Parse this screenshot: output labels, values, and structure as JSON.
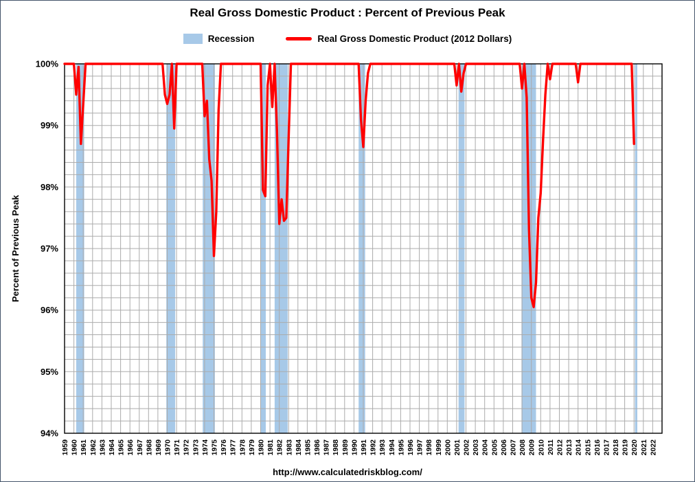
{
  "title": "Real Gross Domestic Product : Percent of Previous Peak",
  "footer_url": "http://www.calculatedriskblog.com/",
  "legend": {
    "recession": {
      "label": "Recession",
      "color": "#A7C9E8"
    },
    "gdp": {
      "label": "Real Gross Domestic Product (2012 Dollars)",
      "color": "#FF0000"
    }
  },
  "chart_data": {
    "type": "line",
    "title": "Real Gross Domestic Product : Percent of Previous Peak",
    "xlabel": "",
    "ylabel": "Percent of Previous Peak",
    "ylim": [
      94,
      100
    ],
    "ytick_step": 1,
    "ytick_labels": [
      "94%",
      "95%",
      "96%",
      "97%",
      "98%",
      "99%",
      "100%"
    ],
    "minor_grid_step": 0.2,
    "grid": true,
    "legend_position": "top",
    "x_start_year": 1959,
    "x_axis_span_years": 64,
    "x_tick_years": [
      1959,
      1960,
      1961,
      1962,
      1963,
      1964,
      1965,
      1966,
      1967,
      1968,
      1969,
      1970,
      1971,
      1972,
      1973,
      1974,
      1975,
      1976,
      1977,
      1978,
      1979,
      1980,
      1981,
      1982,
      1983,
      1984,
      1985,
      1986,
      1987,
      1988,
      1989,
      1990,
      1991,
      1992,
      1993,
      1994,
      1995,
      1996,
      1997,
      1998,
      1999,
      2000,
      2001,
      2002,
      2003,
      2004,
      2005,
      2006,
      2007,
      2008,
      2009,
      2010,
      2011,
      2012,
      2013,
      2014,
      2015,
      2016,
      2017,
      2018,
      2019,
      2020,
      2021,
      2022
    ],
    "recessions": [
      [
        1960.25,
        1961.1
      ],
      [
        1969.9,
        1970.85
      ],
      [
        1973.8,
        1975.1
      ],
      [
        1980.0,
        1980.55
      ],
      [
        1981.5,
        1982.9
      ],
      [
        1990.5,
        1991.2
      ],
      [
        2001.2,
        2001.85
      ],
      [
        2007.95,
        2009.5
      ],
      [
        2020.1,
        2020.35
      ]
    ],
    "series": [
      {
        "name": "Real Gross Domestic Product (2012 Dollars)",
        "color": "#FF0000",
        "start": 1959.0,
        "step": 0.25,
        "unit": "percent of previous peak",
        "values": [
          100,
          100,
          100,
          100,
          100,
          99.5,
          99.95,
          98.7,
          99.35,
          100,
          100,
          100,
          100,
          100,
          100,
          100,
          100,
          100,
          100,
          100,
          100,
          100,
          100,
          100,
          100,
          100,
          100,
          100,
          100,
          100,
          100,
          100,
          100,
          100,
          100,
          100,
          100,
          100,
          100,
          100,
          100,
          100,
          100,
          99.5,
          99.35,
          99.5,
          100,
          98.95,
          100,
          100,
          100,
          100,
          100,
          100,
          100,
          100,
          100,
          100,
          100,
          100,
          99.15,
          99.4,
          98.45,
          98.1,
          96.88,
          97.6,
          99.25,
          100,
          100,
          100,
          100,
          100,
          100,
          100,
          100,
          100,
          100,
          100,
          100,
          100,
          100,
          100,
          100,
          100,
          100,
          97.95,
          97.85,
          99.65,
          100,
          99.3,
          100,
          98.9,
          97.4,
          97.8,
          97.45,
          97.5,
          98.8,
          100,
          100,
          100,
          100,
          100,
          100,
          100,
          100,
          100,
          100,
          100,
          100,
          100,
          100,
          100,
          100,
          100,
          100,
          100,
          100,
          100,
          100,
          100,
          100,
          100,
          100,
          100,
          100,
          100,
          100,
          99.1,
          98.65,
          99.4,
          99.85,
          100,
          100,
          100,
          100,
          100,
          100,
          100,
          100,
          100,
          100,
          100,
          100,
          100,
          100,
          100,
          100,
          100,
          100,
          100,
          100,
          100,
          100,
          100,
          100,
          100,
          100,
          100,
          100,
          100,
          100,
          100,
          100,
          100,
          100,
          100,
          100,
          100,
          99.65,
          100,
          99.55,
          99.85,
          100,
          100,
          100,
          100,
          100,
          100,
          100,
          100,
          100,
          100,
          100,
          100,
          100,
          100,
          100,
          100,
          100,
          100,
          100,
          100,
          100,
          100,
          100,
          100,
          99.6,
          100,
          99.45,
          97.3,
          96.2,
          96.05,
          96.45,
          97.5,
          97.9,
          98.75,
          99.5,
          100,
          99.75,
          100,
          100,
          100,
          100,
          100,
          100,
          100,
          100,
          100,
          100,
          100,
          99.7,
          100,
          100,
          100,
          100,
          100,
          100,
          100,
          100,
          100,
          100,
          100,
          100,
          100,
          100,
          100,
          100,
          100,
          100,
          100,
          100,
          100,
          100,
          100,
          98.7
        ]
      }
    ]
  }
}
